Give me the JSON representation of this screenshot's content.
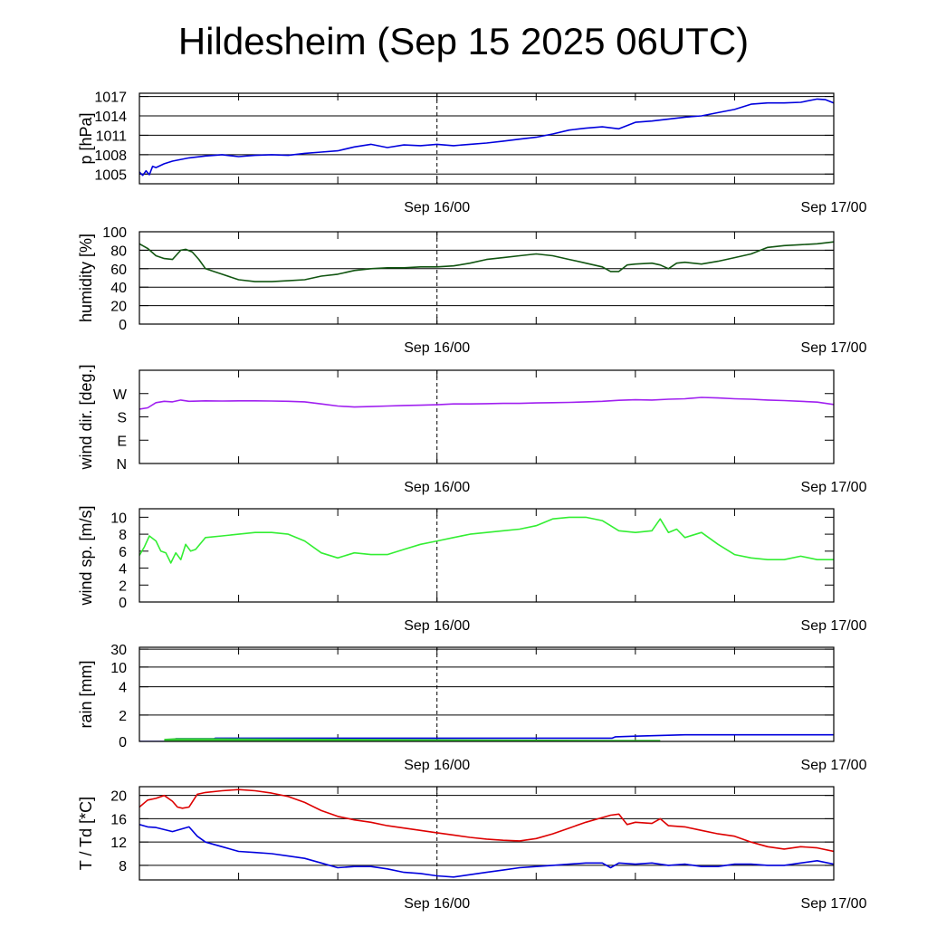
{
  "title": "Hildesheim (Sep 15 2025 06UTC)",
  "chart_data": [
    {
      "type": "line",
      "ylabel": "p [hPa]",
      "ylim": [
        1003.5,
        1017.5
      ],
      "yticks": [
        1005,
        1008,
        1011,
        1014,
        1017
      ],
      "ytick_labels": [
        "1005",
        "1008",
        "1011",
        "1014",
        "1017"
      ],
      "grid": true,
      "x_unit": "hours since Sep 15 06UTC",
      "xlim": [
        0,
        42
      ],
      "x_tick_labels": [
        "Sep 16/00",
        "Sep 17/00"
      ],
      "x_ticks": [
        18,
        42
      ],
      "series": [
        {
          "color": "#0000dd",
          "x": [
            0,
            0.2,
            0.4,
            0.6,
            0.8,
            1,
            1.5,
            2,
            3,
            4,
            5,
            6,
            7,
            8,
            9,
            10,
            11,
            12,
            13,
            14,
            15,
            16,
            17,
            18,
            19,
            20,
            21,
            22,
            23,
            24,
            25,
            26,
            27,
            28,
            29,
            30,
            31,
            32,
            33,
            34,
            35,
            36,
            37,
            38,
            39,
            40,
            41,
            41.5,
            42
          ],
          "y": [
            1005.3,
            1004.8,
            1005.5,
            1004.9,
            1006.2,
            1006.0,
            1006.6,
            1007.0,
            1007.5,
            1007.8,
            1008.0,
            1007.7,
            1007.9,
            1008.0,
            1007.9,
            1008.2,
            1008.4,
            1008.6,
            1009.2,
            1009.6,
            1009.1,
            1009.5,
            1009.4,
            1009.6,
            1009.4,
            1009.6,
            1009.8,
            1010.1,
            1010.4,
            1010.7,
            1011.2,
            1011.8,
            1012.1,
            1012.3,
            1012.0,
            1013.0,
            1013.2,
            1013.5,
            1013.8,
            1014.0,
            1014.5,
            1015.0,
            1015.8,
            1016.0,
            1016.0,
            1016.1,
            1016.6,
            1016.5,
            1016.0
          ]
        }
      ]
    },
    {
      "type": "line",
      "ylabel": "humidity [%]",
      "ylim": [
        0,
        100
      ],
      "yticks": [
        0,
        20,
        40,
        60,
        80,
        100
      ],
      "ytick_labels": [
        "0",
        "20",
        "40",
        "60",
        "80",
        "100"
      ],
      "grid": true,
      "x_unit": "hours since Sep 15 06UTC",
      "xlim": [
        0,
        42
      ],
      "x_tick_labels": [
        "Sep 16/00",
        "Sep 17/00"
      ],
      "x_ticks": [
        18,
        42
      ],
      "series": [
        {
          "color": "#115511",
          "x": [
            0,
            0.5,
            1,
            1.5,
            2,
            2.5,
            2.8,
            3.2,
            3.6,
            4,
            4.5,
            5,
            6,
            7,
            8,
            9,
            10,
            11,
            12,
            13,
            14,
            15,
            16,
            17,
            18,
            19,
            20,
            21,
            22,
            23,
            24,
            25,
            26,
            27,
            28,
            28.5,
            29,
            29.5,
            30,
            31,
            31.5,
            32,
            32.5,
            33,
            34,
            35,
            36,
            37,
            38,
            39,
            40,
            41,
            42
          ],
          "y": [
            87,
            82,
            74,
            71,
            70,
            80,
            81,
            78,
            70,
            60,
            57,
            54,
            48,
            46,
            46,
            47,
            48,
            52,
            54,
            58,
            60,
            61,
            61,
            62,
            62,
            63,
            66,
            70,
            72,
            74,
            76,
            74,
            70,
            66,
            62,
            57,
            57,
            64,
            65,
            66,
            64,
            60,
            66,
            67,
            65,
            68,
            72,
            76,
            83,
            85,
            86,
            87,
            89
          ]
        }
      ]
    },
    {
      "type": "line",
      "ylabel": "wind dir. [deg.]",
      "ylim": [
        0,
        360
      ],
      "yticks": [
        0,
        90,
        180,
        270
      ],
      "ytick_labels": [
        "N",
        "E",
        "S",
        "W"
      ],
      "grid": false,
      "x_unit": "hours since Sep 15 06UTC",
      "xlim": [
        0,
        42
      ],
      "x_tick_labels": [
        "Sep 16/00",
        "Sep 17/00"
      ],
      "x_ticks": [
        18,
        42
      ],
      "series": [
        {
          "color": "#a020f0",
          "x": [
            0,
            0.5,
            1,
            1.5,
            2,
            2.5,
            3,
            4,
            5,
            6,
            7,
            8,
            9,
            10,
            11,
            12,
            13,
            14,
            15,
            16,
            17,
            18,
            19,
            20,
            21,
            22,
            23,
            24,
            25,
            26,
            27,
            28,
            29,
            30,
            31,
            32,
            33,
            34,
            35,
            36,
            37,
            38,
            39,
            40,
            41,
            42
          ],
          "y": [
            210,
            215,
            235,
            240,
            238,
            245,
            240,
            242,
            241,
            242,
            242,
            241,
            240,
            238,
            230,
            222,
            218,
            220,
            222,
            224,
            225,
            227,
            230,
            230,
            231,
            232,
            232,
            234,
            235,
            236,
            238,
            240,
            244,
            246,
            245,
            248,
            250,
            255,
            253,
            250,
            248,
            245,
            243,
            240,
            237,
            228
          ]
        }
      ]
    },
    {
      "type": "line",
      "ylabel": "wind sp. [m/s]",
      "ylim": [
        0,
        11
      ],
      "yticks": [
        0,
        2,
        4,
        6,
        8,
        10
      ],
      "ytick_labels": [
        "0",
        "2",
        "4",
        "6",
        "8",
        "10"
      ],
      "grid": false,
      "x_unit": "hours since Sep 15 06UTC",
      "xlim": [
        0,
        42
      ],
      "x_tick_labels": [
        "Sep 16/00",
        "Sep 17/00"
      ],
      "x_ticks": [
        18,
        42
      ],
      "series": [
        {
          "color": "#33ee33",
          "x": [
            0,
            0.3,
            0.6,
            1,
            1.3,
            1.6,
            1.9,
            2.2,
            2.5,
            2.8,
            3.1,
            3.4,
            4,
            5,
            6,
            7,
            8,
            9,
            10,
            11,
            12,
            13,
            14,
            15,
            16,
            17,
            18,
            19,
            20,
            21,
            22,
            23,
            24,
            25,
            26,
            27,
            28,
            29,
            30,
            31,
            31.5,
            32,
            32.5,
            33,
            34,
            35,
            36,
            37,
            38,
            39,
            40,
            41,
            42
          ],
          "y": [
            5.5,
            6.5,
            7.8,
            7.2,
            6.0,
            5.8,
            4.6,
            5.8,
            5.0,
            6.8,
            6.0,
            6.2,
            7.6,
            7.8,
            8.0,
            8.2,
            8.2,
            8.0,
            7.2,
            5.8,
            5.2,
            5.8,
            5.6,
            5.6,
            6.2,
            6.8,
            7.2,
            7.6,
            8.0,
            8.2,
            8.4,
            8.6,
            9.0,
            9.8,
            10.0,
            10.0,
            9.6,
            8.4,
            8.2,
            8.4,
            9.8,
            8.2,
            8.6,
            7.6,
            8.2,
            6.8,
            5.6,
            5.2,
            5.0,
            5.0,
            5.4,
            5.0,
            5.0
          ]
        }
      ]
    },
    {
      "type": "area",
      "ylabel": "rain [mm]",
      "y_scale": "nonlinear",
      "yticks": [
        0,
        2,
        4,
        10,
        30
      ],
      "ytick_labels": [
        "0",
        "2",
        "4",
        "10",
        "30"
      ],
      "grid": true,
      "x_unit": "hours since Sep 15 06UTC",
      "xlim": [
        0,
        42
      ],
      "x_tick_labels": [
        "Sep 16/00",
        "Sep 17/00"
      ],
      "x_ticks": [
        18,
        42
      ],
      "series": [
        {
          "color": "#0000dd",
          "x": [
            0,
            1.5,
            2.2,
            4.5,
            4.6,
            28.6,
            28.8,
            30,
            31.5,
            33,
            42
          ],
          "y": [
            0,
            0,
            0.2,
            0.2,
            0.25,
            0.25,
            0.35,
            0.4,
            0.45,
            0.5,
            0.5
          ]
        },
        {
          "color": "#33cc33",
          "type": "area",
          "x": [
            1.5,
            2.2,
            4.5,
            28.6,
            30,
            31.5
          ],
          "y": [
            0.2,
            0.25,
            0.25,
            0.12,
            0.12,
            0.12
          ]
        }
      ]
    },
    {
      "type": "line",
      "ylabel": "T / Td [*C]",
      "ylim": [
        5.5,
        21.5
      ],
      "yticks": [
        8,
        12,
        16,
        20
      ],
      "ytick_labels": [
        "8",
        "12",
        "16",
        "20"
      ],
      "grid": true,
      "x_unit": "hours since Sep 15 06UTC",
      "xlim": [
        0,
        42
      ],
      "x_tick_labels": [
        "Sep 16/00",
        "Sep 17/00"
      ],
      "x_ticks": [
        18,
        42
      ],
      "series": [
        {
          "color": "#dd0000",
          "x": [
            0,
            0.5,
            1,
            1.5,
            2,
            2.3,
            2.6,
            3,
            3.5,
            4,
            5,
            6,
            7,
            8,
            9,
            10,
            11,
            12,
            13,
            14,
            15,
            16,
            17,
            18,
            19,
            20,
            21,
            22,
            23,
            24,
            25,
            26,
            27,
            28,
            28.5,
            29,
            29.5,
            30,
            31,
            31.5,
            32,
            33,
            34,
            35,
            36,
            37,
            38,
            39,
            40,
            41,
            42
          ],
          "y": [
            18.0,
            19.2,
            19.5,
            20.0,
            19.0,
            18.0,
            17.8,
            18.0,
            20.2,
            20.5,
            20.8,
            21.0,
            20.8,
            20.4,
            19.8,
            18.8,
            17.4,
            16.4,
            15.8,
            15.4,
            14.8,
            14.4,
            14.0,
            13.6,
            13.2,
            12.8,
            12.5,
            12.3,
            12.2,
            12.6,
            13.4,
            14.4,
            15.4,
            16.2,
            16.6,
            16.8,
            15.0,
            15.4,
            15.2,
            16.0,
            14.8,
            14.6,
            14.0,
            13.4,
            13.0,
            12.0,
            11.2,
            10.8,
            11.2,
            11.0,
            10.4
          ]
        },
        {
          "color": "#0000dd",
          "x": [
            0,
            0.5,
            1,
            2,
            3,
            3.5,
            4,
            5,
            6,
            7,
            8,
            9,
            10,
            11,
            12,
            13,
            14,
            15,
            16,
            17,
            18,
            19,
            20,
            21,
            22,
            23,
            24,
            25,
            26,
            27,
            28,
            28.5,
            29,
            30,
            31,
            32,
            33,
            34,
            35,
            36,
            37,
            38,
            39,
            40,
            41,
            42
          ],
          "y": [
            15.0,
            14.6,
            14.5,
            13.8,
            14.6,
            13.0,
            12.0,
            11.2,
            10.4,
            10.2,
            10.0,
            9.6,
            9.2,
            8.4,
            7.6,
            7.8,
            7.8,
            7.4,
            6.8,
            6.6,
            6.2,
            6.0,
            6.4,
            6.8,
            7.2,
            7.6,
            7.8,
            8.0,
            8.2,
            8.4,
            8.4,
            7.6,
            8.4,
            8.2,
            8.4,
            8.0,
            8.2,
            7.8,
            7.8,
            8.2,
            8.2,
            8.0,
            8.0,
            8.4,
            8.8,
            8.2
          ]
        }
      ]
    }
  ]
}
